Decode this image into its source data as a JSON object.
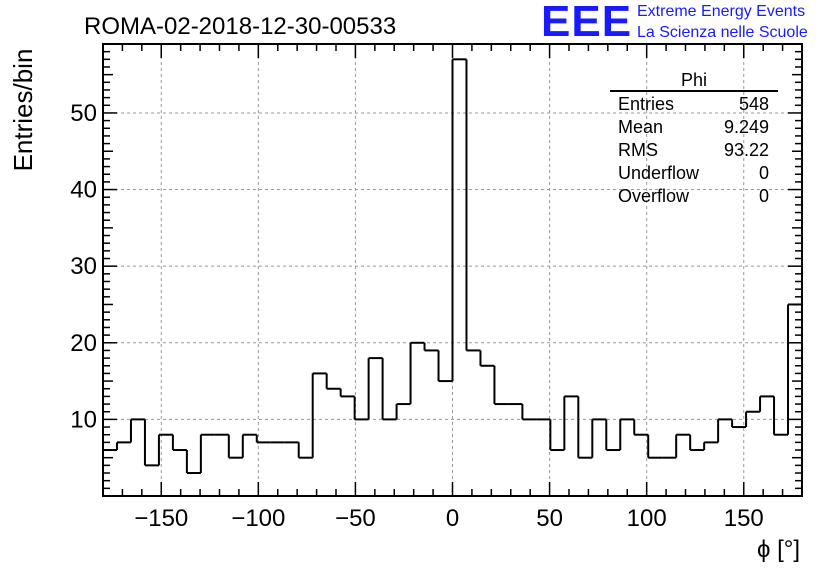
{
  "header": {
    "run_title": "ROMA-02-2018-12-30-00533",
    "logo_text": "EEE",
    "logo_line1": "Extreme Energy Events",
    "logo_line2": "La Scienza nelle Scuole",
    "logo_color": "#1a1aff"
  },
  "stats_box": {
    "title": "Phi",
    "rows": [
      {
        "label": "Entries",
        "value": "548"
      },
      {
        "label": "Mean",
        "value": "9.249"
      },
      {
        "label": "RMS",
        "value": "93.22"
      },
      {
        "label": "Underflow",
        "value": "0"
      },
      {
        "label": "Overflow",
        "value": "0"
      }
    ]
  },
  "chart_data": {
    "type": "histogram",
    "title": "ROMA-02-2018-12-30-00533",
    "xlabel": "ϕ [°]",
    "ylabel": "Entries/bin",
    "xlim": [
      -180,
      180
    ],
    "ylim": [
      0,
      59
    ],
    "bin_width": 7.2,
    "x_ticks": [
      -150,
      -100,
      -50,
      0,
      50,
      100,
      150
    ],
    "x_tick_labels": [
      "−150",
      "−100",
      "−50",
      "0",
      "50",
      "100",
      "150"
    ],
    "y_ticks": [
      10,
      20,
      30,
      40,
      50
    ],
    "y_tick_labels": [
      "10",
      "20",
      "30",
      "40",
      "50"
    ],
    "grid": true,
    "values": [
      6,
      7,
      10,
      4,
      8,
      6,
      3,
      8,
      8,
      5,
      8,
      7,
      7,
      7,
      5,
      16,
      14,
      13,
      10,
      18,
      10,
      12,
      20,
      19,
      15,
      57,
      19,
      17,
      12,
      12,
      10,
      10,
      6,
      13,
      5,
      10,
      6,
      10,
      8,
      5,
      5,
      8,
      6,
      7,
      10,
      9,
      11,
      13,
      8,
      25
    ]
  }
}
